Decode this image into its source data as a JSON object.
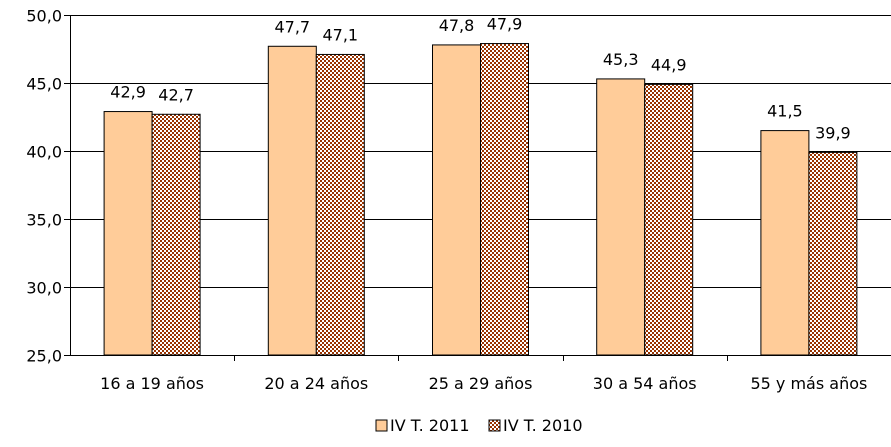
{
  "chart_data": {
    "type": "bar",
    "categories": [
      "16 a 19 años",
      "20 a 24 años",
      "25 a 29 años",
      "30 a 54 años",
      "55 y más años"
    ],
    "series": [
      {
        "name": "IV T. 2011",
        "values": [
          42.9,
          47.7,
          47.8,
          45.3,
          41.5
        ],
        "labels": [
          "42,9",
          "47,7",
          "47,8",
          "45,3",
          "41,5"
        ],
        "color": "#FFCC99",
        "pattern": "solid"
      },
      {
        "name": "IV T. 2010",
        "values": [
          42.7,
          47.1,
          47.9,
          44.9,
          39.9
        ],
        "labels": [
          "42,7",
          "47,1",
          "47,9",
          "44,9",
          "39,9"
        ],
        "color": "#993300",
        "pattern": "checkered"
      }
    ],
    "ylim": [
      25.0,
      50.0
    ],
    "yticks": [
      50.0,
      45.0,
      40.0,
      35.0,
      30.0,
      25.0
    ],
    "ytick_labels": [
      "50,0",
      "45,0",
      "40,0",
      "35,0",
      "30,0",
      "25,0"
    ],
    "grid": true,
    "legend_position": "bottom",
    "title": "",
    "xlabel": "",
    "ylabel": ""
  }
}
